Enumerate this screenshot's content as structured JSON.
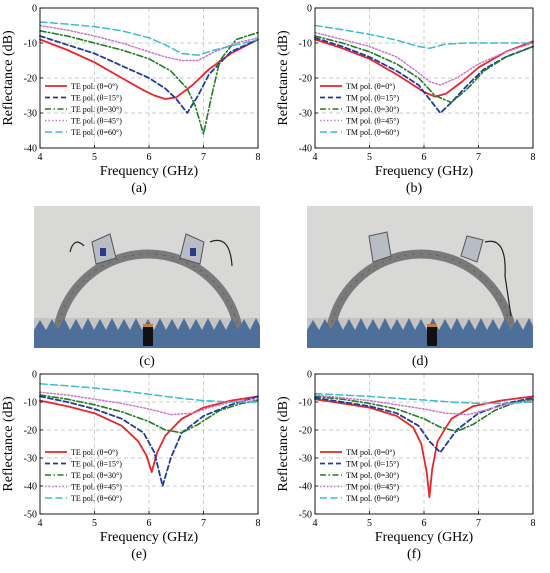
{
  "captions": [
    "(a)",
    "(b)",
    "(c)",
    "(d)",
    "(e)",
    "(f)"
  ],
  "colors": {
    "p0": "#e8252b",
    "p15": "#1f3d9e",
    "p30": "#1f7d1f",
    "p45": "#cc77cc",
    "p60": "#3cbcd0"
  },
  "chart_data": [
    {
      "id": "a",
      "type": "line",
      "xlabel": "Frequency (GHz)",
      "ylabel": "Reflectance (dB)",
      "xlim": [
        4,
        8
      ],
      "ylim": [
        -40,
        0
      ],
      "xticks": [
        4,
        5,
        6,
        7,
        8
      ],
      "yticks": [
        0,
        -10,
        -20,
        -30,
        -40
      ],
      "xticklabels": [
        "4",
        "5",
        "6",
        "7",
        "8"
      ],
      "yticklabels": [
        "0",
        "-10",
        "-20",
        "-30",
        "-40"
      ],
      "grid": "dashed",
      "legend": "left",
      "series": [
        {
          "name": "TE pol. (θ=0°)",
          "style": "solid",
          "color": "#e8252b",
          "x": [
            4,
            4.5,
            5,
            5.5,
            5.9,
            6.1,
            6.3,
            6.5,
            6.8,
            7.1,
            7.5,
            8
          ],
          "y": [
            -9,
            -12,
            -15.5,
            -20,
            -23.5,
            -25,
            -26,
            -25.5,
            -22,
            -17.5,
            -13,
            -9
          ]
        },
        {
          "name": "TE pol. (θ=15°)",
          "style": "dashed",
          "color": "#1f3d9e",
          "x": [
            4,
            4.5,
            5,
            5.5,
            6,
            6.3,
            6.5,
            6.7,
            6.9,
            7.1,
            7.5,
            8
          ],
          "y": [
            -8,
            -10.5,
            -13,
            -16.5,
            -20,
            -23,
            -26,
            -30,
            -25,
            -19,
            -12.5,
            -9
          ]
        },
        {
          "name": "TE pol. (θ=30°)",
          "style": "dashdot",
          "color": "#1f7d1f",
          "x": [
            4,
            4.5,
            5,
            5.5,
            6,
            6.4,
            6.7,
            6.85,
            7.0,
            7.15,
            7.3,
            7.6,
            8
          ],
          "y": [
            -6.5,
            -8,
            -10,
            -12,
            -14.5,
            -18,
            -23,
            -28,
            -36,
            -25,
            -15,
            -9,
            -7
          ]
        },
        {
          "name": "TE pol. (θ=45°)",
          "style": "dotted",
          "color": "#cc77cc",
          "x": [
            4,
            4.5,
            5,
            5.5,
            6,
            6.3,
            6.6,
            6.9,
            7.2,
            7.6,
            8
          ],
          "y": [
            -5,
            -6.3,
            -8,
            -10,
            -12.5,
            -14,
            -15,
            -15,
            -12.5,
            -10,
            -8.5
          ]
        },
        {
          "name": "TE pol. (θ=60°)",
          "style": "dash",
          "color": "#3cbcd0",
          "x": [
            4,
            4.5,
            5,
            5.5,
            6,
            6.3,
            6.6,
            6.9,
            7.2,
            7.6,
            8
          ],
          "y": [
            -4,
            -4.6,
            -5.3,
            -6.5,
            -8.5,
            -10.5,
            -13,
            -13.5,
            -12,
            -10.5,
            -9
          ]
        }
      ]
    },
    {
      "id": "b",
      "type": "line",
      "xlabel": "Frequency (GHz)",
      "ylabel": "Reflectance (dB)",
      "xlim": [
        4,
        8
      ],
      "ylim": [
        -40,
        0
      ],
      "xticks": [
        4,
        5,
        6,
        7,
        8
      ],
      "yticks": [
        0,
        -10,
        -20,
        -30,
        -40
      ],
      "xticklabels": [
        "4",
        "5",
        "6",
        "7",
        "8"
      ],
      "yticklabels": [
        "0",
        "-10",
        "-20",
        "-30",
        "-40"
      ],
      "grid": "dashed",
      "legend": "left",
      "series": [
        {
          "name": "TM pol. (θ=0°)",
          "style": "solid",
          "color": "#e8252b",
          "x": [
            4,
            4.5,
            5,
            5.5,
            5.8,
            6.0,
            6.2,
            6.4,
            6.7,
            7,
            7.5,
            8
          ],
          "y": [
            -9,
            -11.5,
            -14.5,
            -19,
            -22,
            -24,
            -25.3,
            -24.5,
            -21,
            -17,
            -12.5,
            -9.5
          ]
        },
        {
          "name": "TM pol. (θ=15°)",
          "style": "dashed",
          "color": "#1f3d9e",
          "x": [
            4,
            4.5,
            5,
            5.5,
            5.9,
            6.1,
            6.3,
            6.5,
            6.8,
            7.1,
            7.5,
            8
          ],
          "y": [
            -8.5,
            -11,
            -14,
            -18,
            -22,
            -26,
            -30,
            -27,
            -22,
            -17.5,
            -14,
            -11
          ]
        },
        {
          "name": "TM pol. (θ=30°)",
          "style": "dashdot",
          "color": "#1f7d1f",
          "x": [
            4,
            4.5,
            5,
            5.5,
            5.9,
            6.2,
            6.5,
            6.8,
            7.1,
            7.5,
            8
          ],
          "y": [
            -8,
            -10,
            -12.5,
            -16,
            -20,
            -25,
            -27,
            -23,
            -18,
            -14,
            -11
          ]
        },
        {
          "name": "TM pol. (θ=45°)",
          "style": "dotted",
          "color": "#cc77cc",
          "x": [
            4,
            4.5,
            5,
            5.5,
            5.9,
            6.1,
            6.3,
            6.6,
            7,
            7.5,
            8
          ],
          "y": [
            -7,
            -9,
            -11,
            -14,
            -18.5,
            -21,
            -22,
            -20,
            -16,
            -12.5,
            -10
          ]
        },
        {
          "name": "TM pol. (θ=60°)",
          "style": "dash",
          "color": "#3cbcd0",
          "x": [
            4,
            4.5,
            5,
            5.5,
            5.9,
            6.1,
            6.4,
            6.8,
            7.2,
            7.6,
            8
          ],
          "y": [
            -5,
            -6.2,
            -7.5,
            -9.2,
            -11,
            -11.5,
            -10.3,
            -10,
            -10,
            -10,
            -10
          ]
        }
      ]
    },
    {
      "id": "e",
      "type": "line",
      "xlabel": "Frequency (GHz)",
      "ylabel": "Reflectance (dB)",
      "xlim": [
        4,
        8
      ],
      "ylim": [
        -50,
        0
      ],
      "xticks": [
        4,
        5,
        6,
        7,
        8
      ],
      "yticks": [
        0,
        -10,
        -20,
        -30,
        -40,
        -50
      ],
      "xticklabels": [
        "4",
        "5",
        "6",
        "7",
        "8"
      ],
      "yticklabels": [
        "0",
        "-10",
        "-20",
        "-30",
        "-40",
        "-50"
      ],
      "grid": "dashed",
      "legend": "left",
      "series": [
        {
          "name": "TE pol. (θ=0°)",
          "style": "solid",
          "color": "#e8252b",
          "x": [
            4,
            4.5,
            5,
            5.5,
            5.8,
            5.95,
            6.05,
            6.15,
            6.3,
            6.6,
            7,
            7.5,
            8
          ],
          "y": [
            -9.5,
            -11.5,
            -14,
            -18.5,
            -24,
            -29,
            -35,
            -28,
            -22,
            -16,
            -12,
            -9.5,
            -8
          ]
        },
        {
          "name": "TE pol. (θ=15°)",
          "style": "dashed",
          "color": "#1f3d9e",
          "x": [
            4,
            4.5,
            5,
            5.5,
            5.9,
            6.1,
            6.25,
            6.4,
            6.6,
            7,
            7.5,
            8
          ],
          "y": [
            -8,
            -10,
            -12.5,
            -16,
            -21,
            -28,
            -40,
            -30,
            -21,
            -15,
            -11,
            -8
          ]
        },
        {
          "name": "TE pol. (θ=30°)",
          "style": "dashdot",
          "color": "#1f7d1f",
          "x": [
            4,
            4.5,
            5,
            5.5,
            6,
            6.3,
            6.6,
            6.9,
            7.3,
            7.7,
            8
          ],
          "y": [
            -7.5,
            -9,
            -11,
            -13.5,
            -17,
            -20,
            -21,
            -18,
            -13,
            -10.5,
            -9.5
          ]
        },
        {
          "name": "TE pol. (θ=45°)",
          "style": "dotted",
          "color": "#cc77cc",
          "x": [
            4,
            4.5,
            5,
            5.5,
            6,
            6.4,
            6.8,
            7.1,
            7.5,
            8
          ],
          "y": [
            -6.5,
            -7.5,
            -9,
            -10.5,
            -12.5,
            -14.5,
            -14,
            -12,
            -10,
            -9
          ]
        },
        {
          "name": "TE pol. (θ=60°)",
          "style": "dash",
          "color": "#3cbcd0",
          "x": [
            4,
            4.5,
            5,
            5.5,
            6,
            6.5,
            7,
            7.5,
            8
          ],
          "y": [
            -3.5,
            -4.2,
            -5,
            -6,
            -7.2,
            -8.5,
            -9.5,
            -10,
            -10
          ]
        }
      ]
    },
    {
      "id": "f",
      "type": "line",
      "xlabel": "Frequency (GHz)",
      "ylabel": "Reflectance (dB)",
      "xlim": [
        4,
        8
      ],
      "ylim": [
        -50,
        0
      ],
      "xticks": [
        4,
        5,
        6,
        7,
        8
      ],
      "yticks": [
        0,
        -10,
        -20,
        -30,
        -40,
        -50
      ],
      "xticklabels": [
        "4",
        "5",
        "6",
        "7",
        "8"
      ],
      "yticklabels": [
        "0",
        "-10",
        "-20",
        "-30",
        "-40",
        "-50"
      ],
      "grid": "dashed",
      "legend": "left",
      "series": [
        {
          "name": "TM pol. (θ=0°)",
          "style": "solid",
          "color": "#e8252b",
          "x": [
            4,
            4.5,
            5,
            5.5,
            5.8,
            5.95,
            6.05,
            6.1,
            6.15,
            6.25,
            6.5,
            6.9,
            7.4,
            8
          ],
          "y": [
            -9,
            -10.5,
            -12,
            -15,
            -19,
            -25,
            -35,
            -44,
            -34,
            -24,
            -16,
            -11.5,
            -9.5,
            -8
          ]
        },
        {
          "name": "TM pol. (θ=15°)",
          "style": "dashed",
          "color": "#1f3d9e",
          "x": [
            4,
            4.5,
            5,
            5.5,
            5.9,
            6.1,
            6.3,
            6.6,
            7,
            7.5,
            8
          ],
          "y": [
            -8.5,
            -10,
            -11.5,
            -14,
            -18.5,
            -24,
            -28,
            -20,
            -14,
            -10.5,
            -8.5
          ]
        },
        {
          "name": "TM pol. (θ=30°)",
          "style": "dashdot",
          "color": "#1f7d1f",
          "x": [
            4,
            4.5,
            5,
            5.5,
            6,
            6.3,
            6.6,
            6.9,
            7.3,
            7.7,
            8
          ],
          "y": [
            -8,
            -9,
            -10.5,
            -12.5,
            -16,
            -19,
            -20.5,
            -18,
            -13,
            -10,
            -9
          ]
        },
        {
          "name": "TM pol. (θ=45°)",
          "style": "dotted",
          "color": "#cc77cc",
          "x": [
            4,
            4.5,
            5,
            5.5,
            6,
            6.4,
            6.8,
            7.2,
            7.6,
            8
          ],
          "y": [
            -7.5,
            -8.5,
            -9.5,
            -11,
            -12.5,
            -14,
            -14.5,
            -12.5,
            -10.5,
            -9.5
          ]
        },
        {
          "name": "TM pol. (θ=60°)",
          "style": "dash",
          "color": "#3cbcd0",
          "x": [
            4,
            4.5,
            5,
            5.5,
            6,
            6.5,
            7,
            7.5,
            8
          ],
          "y": [
            -7,
            -7.5,
            -8,
            -8.7,
            -9.3,
            -10,
            -10.5,
            -10.5,
            -10
          ]
        }
      ]
    }
  ]
}
